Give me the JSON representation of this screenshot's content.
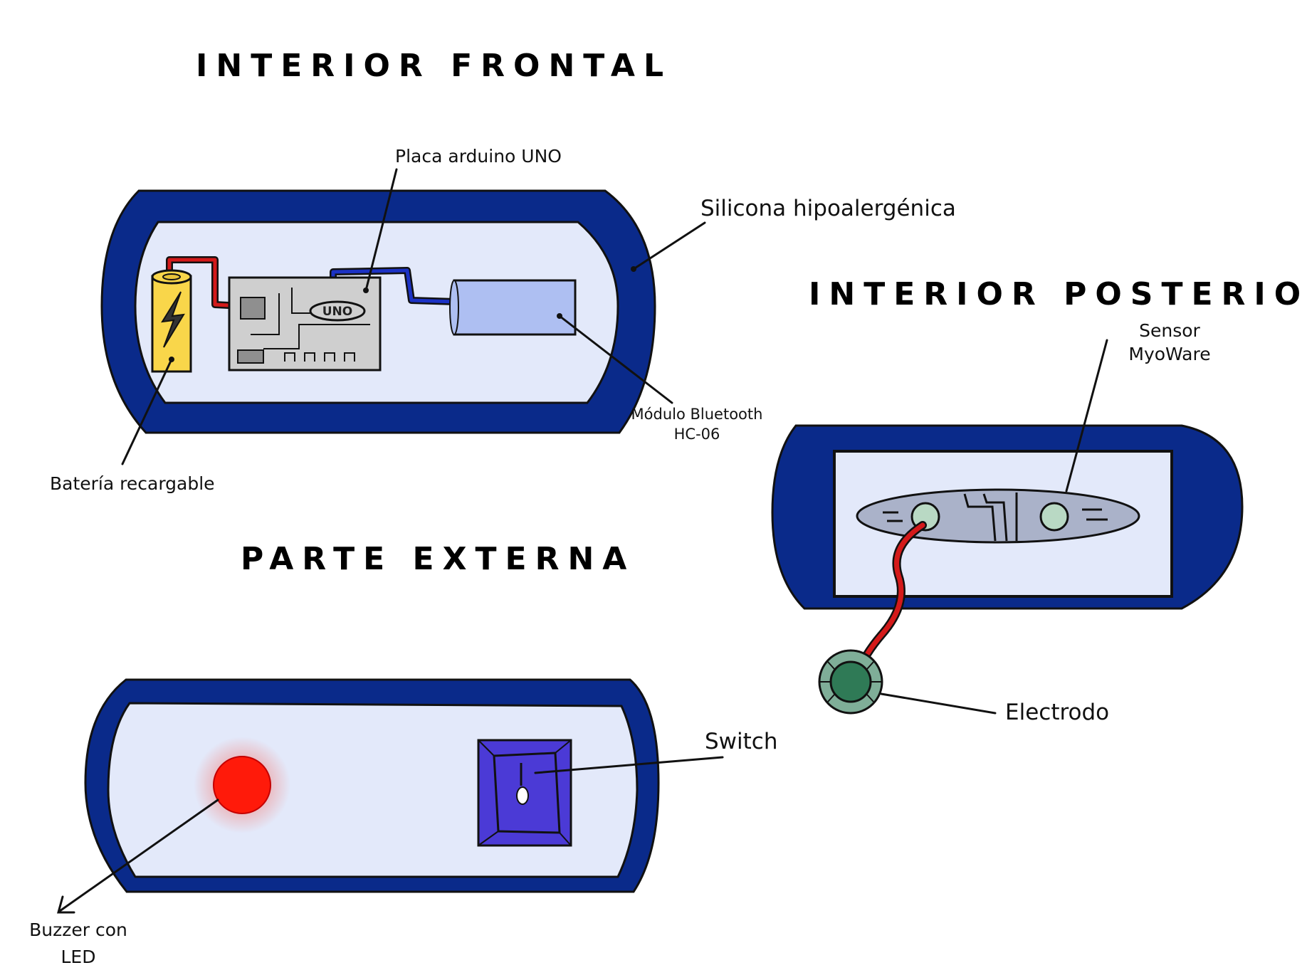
{
  "sections": {
    "front": "INTERIOR FRONTAL",
    "back": "INTERIOR POSTERIOR",
    "external": "PARTE EXTERNA"
  },
  "labels": {
    "arduino": "Placa arduino UNO",
    "silicone": "Silicona hipoalergénica",
    "bluetooth_line1": "Módulo Bluetooth",
    "bluetooth_line2": "HC-06",
    "battery": "Batería recargable",
    "sensor_line1": "Sensor",
    "sensor_line2": "MyoWare",
    "electrode": "Electrodo",
    "switch": "Switch",
    "buzzer_line1": "Buzzer con",
    "buzzer_line2": "LED"
  },
  "board_mark": "UNO",
  "colors": {
    "casing": "#0a2a8a",
    "interior": "#e3e9fa",
    "battery": "#f9d64a",
    "board": "#cfcfcf",
    "bluetooth_module": "#aebff2",
    "led": "#ff1a0a",
    "switch": "#4b3ad6",
    "sensor": "#aab2c9",
    "electrode": "#4f8a6e",
    "wire_red": "#d41a1a",
    "wire_blue": "#1c32c4"
  }
}
